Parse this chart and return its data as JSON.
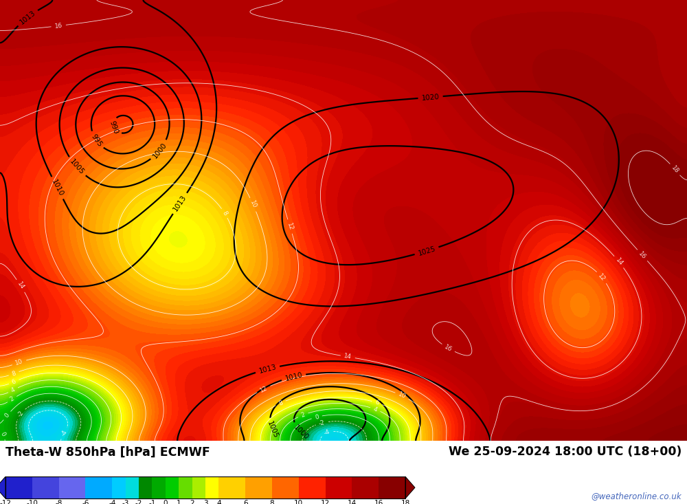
{
  "title_left": "Theta-W 850hPa [hPa] ECMWF",
  "title_right": "We 25-09-2024 18:00 UTC (18+00)",
  "colorbar_ticks": [
    -12,
    -10,
    -8,
    -6,
    -4,
    -3,
    -2,
    -1,
    0,
    1,
    2,
    3,
    4,
    6,
    8,
    10,
    12,
    14,
    16,
    18
  ],
  "colorbar_colors": [
    "#2020CC",
    "#4444DD",
    "#6666EE",
    "#00AAFF",
    "#00CCFF",
    "#00DDDD",
    "#008800",
    "#00AA00",
    "#00CC00",
    "#66DD00",
    "#AAEE00",
    "#FFFF00",
    "#FFD000",
    "#FFA000",
    "#FF6600",
    "#FF2200",
    "#CC0000",
    "#AA0000",
    "#880000"
  ],
  "watermark": "@weatheronline.co.uk",
  "background_color": "#ffffff",
  "figsize": [
    10.0,
    7.33
  ],
  "dpi": 100
}
